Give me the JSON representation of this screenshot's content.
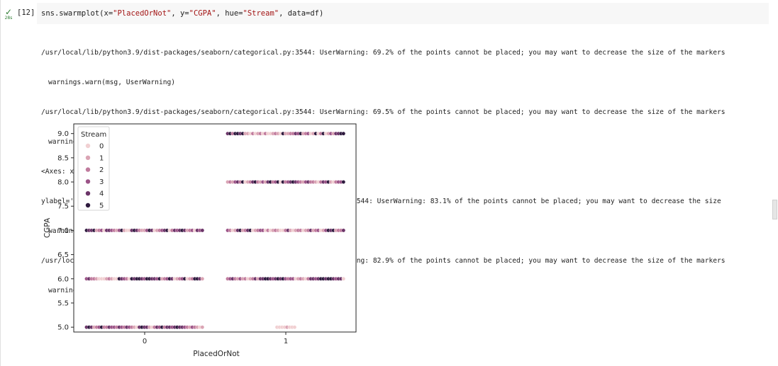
{
  "cell": {
    "run_check": "✓",
    "run_time": "28s",
    "exec_count": "[12]",
    "code": {
      "fn": "sns.swarmplot(x=",
      "x_arg": "\"PlacedOrNot\"",
      "sep1": ", y=",
      "y_arg": "\"CGPA\"",
      "sep2": ", hue=",
      "hue_arg": "\"Stream\"",
      "tail": ", data=df)"
    }
  },
  "output_lines": [
    {
      "text": "/usr/local/lib/python3.9/dist-packages/seaborn/categorical.py:3544: UserWarning: 69.2% of the points cannot be placed; you may want to decrease the size of the markers",
      "indent": false
    },
    {
      "text": "warnings.warn(msg, UserWarning)",
      "indent": true
    },
    {
      "text": "/usr/local/lib/python3.9/dist-packages/seaborn/categorical.py:3544: UserWarning: 69.5% of the points cannot be placed; you may want to decrease the size of the markers",
      "indent": false
    },
    {
      "text": "warnings.warn(msg, UserWarning)",
      "indent": true
    },
    {
      "text": "<Axes: xlabel='PlacedOrNot',",
      "indent": false
    },
    {
      "text": "ylabel='CGPA'>/usr/local/lib/python3.9/dist-packages/seaborn/categorical.py:3544: UserWarning: 83.1% of the points cannot be placed; you may want to decrease the size",
      "indent": false
    },
    {
      "text": "warnings.warn(msg, UserWarning)",
      "indent": true
    },
    {
      "text": "/usr/local/lib/python3.9/dist-packages/seaborn/categorical.py:3544: UserWarning: 82.9% of the points cannot be placed; you may want to decrease the size of the markers",
      "indent": false
    },
    {
      "text": "warnings.warn(msg, UserWarning)",
      "indent": true
    }
  ],
  "chart_data": {
    "type": "scatter",
    "subtype": "swarm",
    "xlabel": "PlacedOrNot",
    "ylabel": "CGPA",
    "categories": [
      "0",
      "1"
    ],
    "ylim": [
      4.9,
      9.2
    ],
    "yticks": [
      5.0,
      5.5,
      6.0,
      6.5,
      7.0,
      7.5,
      8.0,
      8.5,
      9.0
    ],
    "ytick_labels": [
      "5.0",
      "5.5",
      "6.0",
      "6.5",
      "7.0",
      "7.5",
      "8.0",
      "8.5",
      "9.0"
    ],
    "grid": false,
    "legend": {
      "title": "Stream",
      "placement": "top-left",
      "entries": [
        "0",
        "1",
        "2",
        "3",
        "4",
        "5"
      ],
      "colors": [
        "#f1d0d2",
        "#daa4b4",
        "#c07b9d",
        "#9b5387",
        "#6b3468",
        "#2e1a3e"
      ]
    },
    "rows": [
      {
        "category": "0",
        "y": 7.0,
        "hues": [
          5,
          4,
          4,
          5,
          1,
          2,
          3,
          0,
          4,
          4,
          3,
          2,
          1,
          3,
          5,
          1,
          0,
          0,
          4,
          5,
          4,
          2,
          1,
          1,
          3,
          5,
          4,
          0,
          1,
          2,
          3,
          4,
          5,
          0,
          2,
          4,
          3,
          4,
          5,
          4,
          1,
          2,
          3,
          0,
          4,
          3,
          4
        ]
      },
      {
        "category": "0",
        "y": 6.0,
        "hues": [
          3,
          4,
          2,
          2,
          1,
          0,
          0,
          0,
          1,
          2,
          1,
          0,
          0,
          5,
          4,
          3,
          2,
          0,
          5,
          4,
          5,
          5,
          4,
          3,
          5,
          5,
          4,
          4,
          3,
          5,
          1,
          2,
          3,
          5,
          4,
          0,
          1,
          2,
          3,
          5,
          0,
          1,
          2,
          5,
          5,
          4,
          1
        ]
      },
      {
        "category": "0",
        "y": 5.0,
        "hues": [
          4,
          5,
          4,
          1,
          2,
          3,
          5,
          2,
          2,
          4,
          3,
          3,
          2,
          4,
          3,
          2,
          4,
          3,
          2,
          1,
          0,
          4,
          5,
          4,
          4,
          1,
          0,
          2,
          4,
          3,
          5,
          2,
          4,
          4,
          3,
          4,
          5,
          4,
          4,
          3,
          2,
          1,
          3,
          2,
          1,
          0,
          1
        ]
      },
      {
        "category": "1",
        "y": 9.0,
        "hues": [
          4,
          5,
          2,
          5,
          5,
          4,
          5,
          1,
          1,
          0,
          2,
          0,
          1,
          2,
          0,
          2,
          0,
          0,
          1,
          2,
          1,
          0,
          5,
          1,
          1,
          2,
          2,
          4,
          3,
          5,
          1,
          2,
          3,
          0,
          1,
          5,
          0,
          2,
          5,
          0,
          1,
          3,
          1,
          4,
          4,
          5,
          5
        ]
      },
      {
        "category": "1",
        "y": 8.0,
        "hues": [
          1,
          2,
          1,
          3,
          4,
          2,
          5,
          0,
          1,
          2,
          4,
          5,
          2,
          1,
          3,
          1,
          4,
          5,
          2,
          3,
          5,
          0,
          5,
          2,
          3,
          4,
          5,
          4,
          3,
          2,
          1,
          3,
          4,
          2,
          2,
          1,
          0,
          2,
          4,
          3,
          5,
          1,
          0,
          2,
          3,
          3,
          5
        ]
      },
      {
        "category": "1",
        "y": 7.0,
        "hues": [
          3,
          2,
          0,
          1,
          4,
          5,
          1,
          2,
          4,
          5,
          0,
          1,
          2,
          3,
          3,
          0,
          2,
          0,
          1,
          2,
          1,
          0,
          0,
          2,
          4,
          1,
          0,
          1,
          2,
          2,
          0,
          1,
          2,
          4,
          1,
          2,
          3,
          0,
          1,
          3,
          5,
          4,
          5,
          1,
          2,
          2,
          4
        ]
      },
      {
        "category": "1",
        "y": 6.0,
        "hues": [
          2,
          3,
          4,
          2,
          1,
          3,
          1,
          2,
          0,
          1,
          2,
          4,
          1,
          4,
          4,
          5,
          5,
          4,
          3,
          4,
          5,
          4,
          5,
          3,
          2,
          3,
          3,
          0,
          1,
          2,
          1,
          0,
          2,
          4,
          4,
          3,
          4,
          5,
          5,
          4,
          5,
          5,
          4,
          3,
          4,
          4,
          0
        ]
      },
      {
        "category": "1",
        "y": 5.0,
        "hues": [
          0,
          0,
          0,
          0,
          1,
          0,
          0,
          0
        ]
      }
    ]
  }
}
